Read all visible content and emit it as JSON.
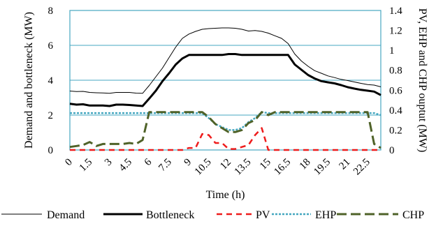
{
  "chart_data": {
    "type": "line",
    "xlabel": "Time (h)",
    "ylabel_left": "Demand and bottleneck (MW)",
    "ylabel_right": "PV, EHP and CHP ouptut (MW)",
    "x_tick_labels": [
      "0",
      "1.5",
      "3",
      "4.5",
      "6",
      "7.5",
      "9",
      "10.5",
      "12",
      "13.5",
      "15",
      "16.5",
      "18",
      "19.5",
      "21",
      "22.5"
    ],
    "x": [
      0,
      0.5,
      1,
      1.5,
      2,
      2.5,
      3,
      3.5,
      4,
      4.5,
      5,
      5.5,
      6,
      6.5,
      7,
      7.5,
      8,
      8.5,
      9,
      9.5,
      10,
      10.5,
      11,
      11.5,
      12,
      12.5,
      13,
      13.5,
      14,
      14.5,
      15,
      15.5,
      16,
      16.5,
      17,
      17.5,
      18,
      18.5,
      19,
      19.5,
      20,
      20.5,
      21,
      21.5,
      22,
      22.5,
      23,
      23.5
    ],
    "xlim": [
      0,
      23.5
    ],
    "ylim_left": [
      0,
      8
    ],
    "ylim_right": [
      0,
      1.4
    ],
    "y_ticks_left": [
      "0",
      "2",
      "4",
      "6",
      "8"
    ],
    "y_ticks_right": [
      "0",
      "0.2",
      "0.4",
      "0.6",
      "0.8",
      "1",
      "1.2",
      "1.4"
    ],
    "legend_position": "bottom",
    "series": [
      {
        "name": "Demand",
        "axis": "left",
        "color": "#000000",
        "style": "thin-solid",
        "values": [
          3.38,
          3.35,
          3.36,
          3.3,
          3.28,
          3.27,
          3.25,
          3.3,
          3.3,
          3.3,
          3.26,
          3.25,
          3.7,
          4.2,
          4.7,
          5.3,
          5.9,
          6.4,
          6.65,
          6.8,
          6.92,
          6.96,
          6.98,
          7.0,
          7.0,
          6.98,
          6.92,
          6.82,
          6.85,
          6.8,
          6.7,
          6.55,
          6.4,
          6.1,
          5.5,
          5.1,
          4.8,
          4.55,
          4.4,
          4.25,
          4.15,
          4.05,
          3.98,
          3.9,
          3.82,
          3.75,
          3.72,
          3.62
        ]
      },
      {
        "name": "Bottleneck",
        "axis": "left",
        "color": "#000000",
        "style": "thick-solid",
        "values": [
          2.65,
          2.6,
          2.62,
          2.55,
          2.55,
          2.55,
          2.52,
          2.6,
          2.6,
          2.58,
          2.55,
          2.52,
          2.95,
          3.4,
          3.95,
          4.4,
          4.9,
          5.25,
          5.45,
          5.45,
          5.45,
          5.45,
          5.45,
          5.45,
          5.5,
          5.5,
          5.45,
          5.45,
          5.45,
          5.45,
          5.45,
          5.45,
          5.45,
          5.45,
          4.9,
          4.6,
          4.3,
          4.1,
          3.95,
          3.88,
          3.82,
          3.72,
          3.6,
          3.52,
          3.45,
          3.4,
          3.35,
          3.15
        ]
      },
      {
        "name": "PV",
        "axis": "right",
        "color": "#ee1c1c",
        "style": "dash",
        "values": [
          0,
          0,
          0,
          0,
          0,
          0,
          0,
          0,
          0,
          0,
          0,
          0,
          0,
          0,
          0,
          0,
          0,
          0,
          0.02,
          0.02,
          0.16,
          0.15,
          0.07,
          0.07,
          0.01,
          0.01,
          0.03,
          0.05,
          0.15,
          0.22,
          0,
          0,
          0,
          0,
          0,
          0,
          0,
          0,
          0,
          0,
          0,
          0,
          0,
          0,
          0,
          0,
          0,
          0
        ]
      },
      {
        "name": "EHP",
        "axis": "right",
        "color": "#45a7c0",
        "style": "dot",
        "values": [
          0.37,
          0.37,
          0.37,
          0.37,
          0.37,
          0.37,
          0.37,
          0.37,
          0.37,
          0.37,
          0.37,
          0.37,
          0.37,
          0.37,
          0.37,
          0.37,
          0.37,
          0.37,
          0.37,
          0.37,
          0.37,
          0.32,
          0.26,
          0.23,
          0.2,
          0.2,
          0.22,
          0.28,
          0.32,
          0.38,
          0.37,
          0.37,
          0.37,
          0.37,
          0.37,
          0.37,
          0.37,
          0.37,
          0.37,
          0.37,
          0.37,
          0.37,
          0.37,
          0.37,
          0.37,
          0.37,
          0.37,
          0.35
        ]
      },
      {
        "name": "CHP",
        "axis": "right",
        "color": "#4f6228",
        "style": "long-dash",
        "values": [
          0.03,
          0.04,
          0.05,
          0.08,
          0.04,
          0.06,
          0.06,
          0.06,
          0.06,
          0.07,
          0.06,
          0.1,
          0.38,
          0.38,
          0.38,
          0.38,
          0.38,
          0.38,
          0.38,
          0.38,
          0.38,
          0.33,
          0.26,
          0.22,
          0.18,
          0.18,
          0.2,
          0.27,
          0.3,
          0.38,
          0.35,
          0.38,
          0.38,
          0.38,
          0.38,
          0.38,
          0.38,
          0.38,
          0.38,
          0.38,
          0.38,
          0.38,
          0.38,
          0.38,
          0.38,
          0.38,
          0.06,
          0.02
        ]
      }
    ]
  }
}
